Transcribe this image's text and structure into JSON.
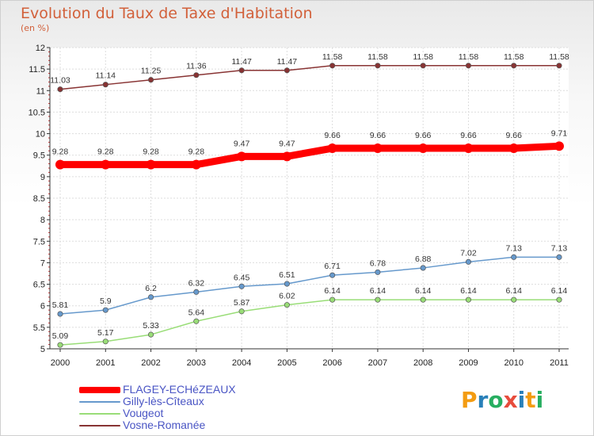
{
  "chart_data": {
    "type": "line",
    "title": "Evolution du Taux de Taxe d'Habitation",
    "subtitle": "(en %)",
    "categories": [
      "2000",
      "2001",
      "2002",
      "2003",
      "2004",
      "2005",
      "2006",
      "2007",
      "2008",
      "2009",
      "2010",
      "2011"
    ],
    "ylim": [
      5,
      12
    ],
    "yticks": [
      "5",
      "5.5",
      "6",
      "6.5",
      "7",
      "7.5",
      "8",
      "8.5",
      "9",
      "9.5",
      "10",
      "10.5",
      "11",
      "11.5",
      "12"
    ],
    "grid": true,
    "legend_position": "bottom-left",
    "series": [
      {
        "name": "FLAGEY-ECHéZEAUX",
        "color": "#ff0000",
        "values": [
          9.28,
          9.28,
          9.28,
          9.28,
          9.47,
          9.47,
          9.66,
          9.66,
          9.66,
          9.66,
          9.66,
          9.71
        ],
        "labels": [
          "9.28",
          "9.28",
          "9.28",
          "9.28",
          "9.47",
          "9.47",
          "9.66",
          "9.66",
          "9.66",
          "9.66",
          "9.66",
          "9.71"
        ]
      },
      {
        "name": "Gilly-lès-Cîteaux",
        "color": "#6699cc",
        "values": [
          5.81,
          5.9,
          6.2,
          6.32,
          6.45,
          6.51,
          6.71,
          6.78,
          6.88,
          7.02,
          7.13,
          7.13
        ],
        "labels": [
          "5.81",
          "5.9",
          "6.2",
          "6.32",
          "6.45",
          "6.51",
          "6.71",
          "6.78",
          "6.88",
          "7.02",
          "7.13",
          "7.13"
        ]
      },
      {
        "name": "Vougeot",
        "color": "#99dd77",
        "values": [
          5.09,
          5.17,
          5.33,
          5.64,
          5.87,
          6.02,
          6.14,
          6.14,
          6.14,
          6.14,
          6.14,
          6.14
        ],
        "labels": [
          "5.09",
          "5.17",
          "5.33",
          "5.64",
          "5.87",
          "6.02",
          "6.14",
          "6.14",
          "6.14",
          "6.14",
          "6.14",
          "6.14"
        ]
      },
      {
        "name": "Vosne-Romanée",
        "color": "#883333",
        "values": [
          11.03,
          11.14,
          11.25,
          11.36,
          11.47,
          11.47,
          11.58,
          11.58,
          11.58,
          11.58,
          11.58,
          11.58
        ],
        "labels": [
          "11.03",
          "11.14",
          "11.25",
          "11.36",
          "11.47",
          "11.47",
          "11.58",
          "11.58",
          "11.58",
          "11.58",
          "11.58",
          "11.58"
        ]
      }
    ]
  },
  "logo": {
    "letters": [
      "P",
      "r",
      "o",
      "x",
      "i",
      "t",
      "i"
    ],
    "colors": [
      "#f39c12",
      "#2980b9",
      "#27ae60",
      "#e74c3c",
      "#2980b9",
      "#f39c12",
      "#27ae60"
    ]
  }
}
